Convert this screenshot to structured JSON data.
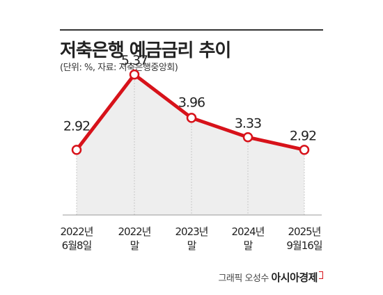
{
  "chart_data": {
    "type": "line",
    "title": "저축은행 예금금리 추이",
    "subtitle": "(단위: %, 자료: 저축은행중앙회)",
    "categories": [
      [
        "2022년",
        "6월8일"
      ],
      [
        "2022년",
        "말"
      ],
      [
        "2023년",
        "말"
      ],
      [
        "2024년",
        "말"
      ],
      [
        "2025년",
        "9월16일"
      ]
    ],
    "values": [
      2.92,
      5.37,
      3.96,
      3.33,
      2.92
    ],
    "data_labels": [
      "2.92",
      "5.37",
      "3.96",
      "3.33",
      "2.92"
    ],
    "ylim": [
      0.8,
      5.6
    ],
    "grid": false,
    "line_color": "#d7121a",
    "area_color": "#eeeeee"
  },
  "credit": {
    "prefix": "그래픽 오성수",
    "brand": "아시아경제"
  }
}
